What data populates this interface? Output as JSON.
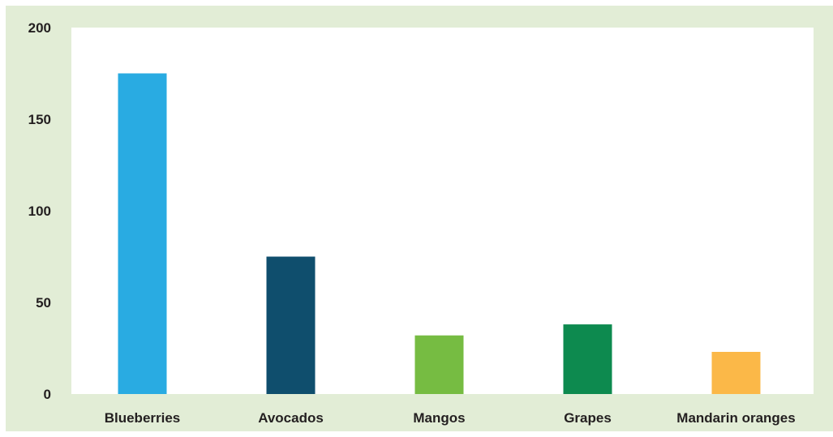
{
  "chart_data": {
    "type": "bar",
    "title": "",
    "xlabel": "",
    "ylabel": "",
    "categories": [
      "Blueberries",
      "Avocados",
      "Mangos",
      "Grapes",
      "Mandarin oranges"
    ],
    "values": [
      175,
      75,
      32,
      38,
      23
    ],
    "colors": [
      "#29abe2",
      "#0f4e6d",
      "#76bc42",
      "#0d8a4f",
      "#fbb848"
    ],
    "ylim": [
      0,
      200
    ],
    "yticks": [
      0,
      50,
      100,
      150,
      200
    ],
    "grid": false,
    "legend": "none",
    "background_color": "#e2edd6",
    "plot_area_color": "#ffffff"
  }
}
